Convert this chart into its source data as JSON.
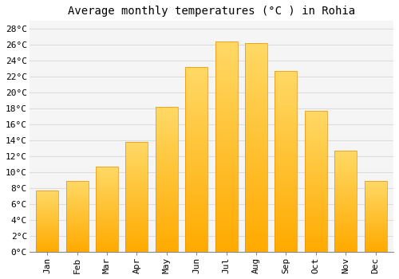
{
  "months": [
    "Jan",
    "Feb",
    "Mar",
    "Apr",
    "May",
    "Jun",
    "Jul",
    "Aug",
    "Sep",
    "Oct",
    "Nov",
    "Dec"
  ],
  "temperatures": [
    7.7,
    8.9,
    10.7,
    13.8,
    18.2,
    23.2,
    26.4,
    26.2,
    22.7,
    17.7,
    12.7,
    8.9
  ],
  "bar_color_bottom": "#FFAA00",
  "bar_color_top": "#FFD966",
  "bar_edge_color": "#E8900A",
  "title": "Average monthly temperatures (°C ) in Rohia",
  "ylim": [
    0,
    29
  ],
  "yticks": [
    0,
    2,
    4,
    6,
    8,
    10,
    12,
    14,
    16,
    18,
    20,
    22,
    24,
    26,
    28
  ],
  "ytick_labels": [
    "0°C",
    "2°C",
    "4°C",
    "6°C",
    "8°C",
    "10°C",
    "12°C",
    "14°C",
    "16°C",
    "18°C",
    "20°C",
    "22°C",
    "24°C",
    "26°C",
    "28°C"
  ],
  "background_color": "#ffffff",
  "plot_bg_color": "#f5f5f5",
  "grid_color": "#dddddd",
  "title_fontsize": 10,
  "tick_fontsize": 8,
  "font_family": "monospace",
  "bar_width": 0.75
}
